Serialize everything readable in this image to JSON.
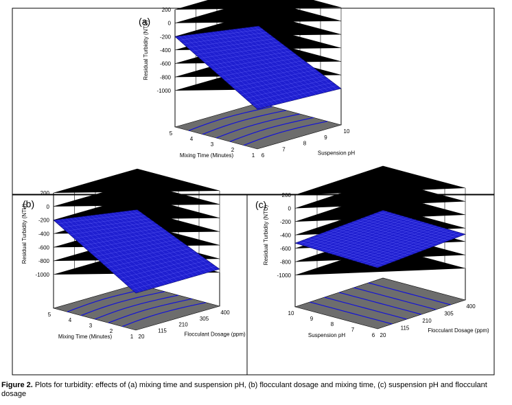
{
  "caption": {
    "label": "Figure 2.",
    "text": "Plots for turbidity: effects of (a) mixing time and suspension pH, (b) flocculant dosage and mixing time, (c) suspension pH and flocculant dosage"
  },
  "colors": {
    "surface": "#1f1fd0",
    "contour": "#1313d8",
    "floor": "#6d6d6d"
  },
  "chart_data": [
    {
      "type": "surface",
      "panel": "(a)",
      "zlabel": "Residual Turbidity (NTU)",
      "z_ticks": [
        "200",
        "0",
        "-200",
        "-400",
        "-600",
        "-800",
        "-1000"
      ],
      "zlim": [
        -1000,
        200
      ],
      "xlabel": "Mixing Time (Minutes)",
      "x_ticks": [
        "5",
        "4",
        "3",
        "2",
        "1"
      ],
      "xlim": [
        1,
        5
      ],
      "ylabel": "Suspension pH",
      "y_ticks": [
        "6",
        "7",
        "8",
        "9",
        "10"
      ],
      "ylim": [
        6,
        10
      ],
      "surface_corners_z": {
        "x_max_y_min": -200,
        "x_min_y_min": -950,
        "x_max_y_max": -400,
        "x_min_y_max": -1000
      }
    },
    {
      "type": "surface",
      "panel": "(b)",
      "zlabel": "Residual Turbidity (NTU)",
      "z_ticks": [
        "200",
        "0",
        "-200",
        "-400",
        "-600",
        "-800",
        "-1000"
      ],
      "zlim": [
        -1000,
        200
      ],
      "xlabel": "Mixing Time (Minutes)",
      "x_ticks": [
        "5",
        "4",
        "3",
        "2",
        "1"
      ],
      "xlim": [
        1,
        5
      ],
      "ylabel": "Flocculant Dosage (ppm)",
      "y_ticks": [
        "20",
        "115",
        "210",
        "305",
        "400"
      ],
      "ylim": [
        20,
        400
      ],
      "surface_corners_z": {
        "x_max_y_min": -200,
        "x_min_y_min": -950,
        "x_max_y_max": -400,
        "x_min_y_max": -950
      }
    },
    {
      "type": "surface",
      "panel": "(c)",
      "zlabel": "Residual Turbidity (NTU)",
      "z_ticks": [
        "200",
        "0",
        "-200",
        "-400",
        "-600",
        "-800",
        "-1000"
      ],
      "zlim": [
        -1000,
        200
      ],
      "xlabel": "Suspension pH",
      "x_ticks": [
        "10",
        "9",
        "8",
        "7",
        "6"
      ],
      "xlim": [
        6,
        10
      ],
      "ylabel": "Flocculant Dosage (ppm)",
      "y_ticks": [
        "20",
        "115",
        "210",
        "305",
        "400"
      ],
      "ylim": [
        20,
        400
      ],
      "surface_corners_z": {
        "x_max_y_min": -520,
        "x_min_y_min": -560,
        "x_max_y_max": -460,
        "x_min_y_max": -490
      }
    }
  ]
}
